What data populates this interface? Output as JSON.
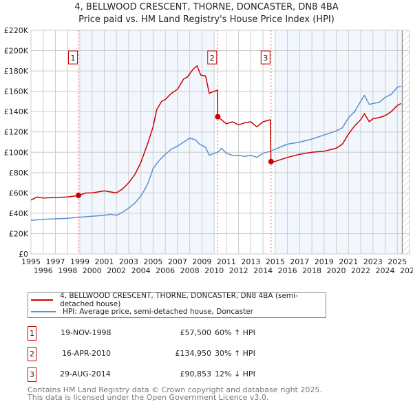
{
  "title": "4, BELLWOOD CRESCENT, THORNE, DONCASTER, DN8 4BA",
  "subtitle": "Price paid vs. HM Land Registry's House Price Index (HPI)",
  "chart_data": {
    "type": "line",
    "xlim": [
      1995,
      2026
    ],
    "ylim": [
      0,
      220000
    ],
    "yticks": [
      0,
      20000,
      40000,
      60000,
      80000,
      100000,
      120000,
      140000,
      160000,
      180000,
      200000,
      220000
    ],
    "ytick_labels": [
      "£0",
      "£20K",
      "£40K",
      "£60K",
      "£80K",
      "£100K",
      "£120K",
      "£140K",
      "£160K",
      "£180K",
      "£200K",
      "£220K"
    ],
    "xticks": [
      1995,
      1996,
      1997,
      1998,
      1999,
      2000,
      2001,
      2002,
      2003,
      2004,
      2005,
      2006,
      2007,
      2008,
      2009,
      2010,
      2011,
      2012,
      2013,
      2014,
      2015,
      2016,
      2017,
      2018,
      2019,
      2020,
      2021,
      2022,
      2023,
      2024,
      2025,
      2026
    ],
    "shaded_ranges": [
      [
        1999,
        2010
      ],
      [
        2015,
        2025.4
      ]
    ],
    "hatched_from": 2025.4,
    "grid": true,
    "series": [
      {
        "name": "4, BELLWOOD CRESCENT, THORNE, DONCASTER, DN8 4BA (semi-detached house)",
        "color": "#cc0000",
        "x": [
          1995,
          1995.5,
          1996,
          1997,
          1998,
          1998.89,
          1999.5,
          2000,
          2001,
          2001.5,
          2002,
          2002.5,
          2003,
          2003.5,
          2004,
          2004.3,
          2004.6,
          2005,
          2005.3,
          2005.7,
          2006,
          2006.5,
          2007,
          2007.5,
          2007.8,
          2008.3,
          2008.6,
          2008.9,
          2009.3,
          2009.6,
          2010,
          2010.28,
          2010.29,
          2011,
          2011.5,
          2012,
          2012.5,
          2013,
          2013.5,
          2014,
          2014.6,
          2014.65,
          2015,
          2016,
          2017,
          2018,
          2019,
          2020,
          2020.5,
          2021,
          2021.5,
          2022,
          2022.3,
          2022.7,
          2023,
          2023.5,
          2024,
          2024.5,
          2025,
          2025.3
        ],
        "y": [
          53000,
          56000,
          55000,
          55500,
          56000,
          57500,
          60000,
          60000,
          62000,
          61000,
          60000,
          64000,
          70000,
          78000,
          90000,
          100000,
          110000,
          125000,
          142000,
          150000,
          152000,
          158000,
          162000,
          172000,
          174000,
          182000,
          185000,
          176000,
          175000,
          158000,
          160000,
          161000,
          134950,
          128000,
          130000,
          127000,
          129000,
          130000,
          125000,
          130000,
          132000,
          90853,
          91000,
          95000,
          98000,
          100000,
          101000,
          104000,
          108000,
          118000,
          126000,
          132000,
          138000,
          130000,
          133000,
          134000,
          136000,
          140000,
          146000,
          148000
        ]
      },
      {
        "name": "HPI: Average price, semi-detached house, Doncaster",
        "color": "#5b8fd0",
        "x": [
          1995,
          1996,
          1997,
          1998,
          1998.89,
          2000,
          2001,
          2001.5,
          2002,
          2002.5,
          2003,
          2003.5,
          2004,
          2004.3,
          2004.6,
          2005,
          2005.5,
          2006,
          2006.5,
          2007,
          2007.5,
          2008,
          2008.5,
          2008.8,
          2009.3,
          2009.6,
          2010,
          2010.3,
          2010.6,
          2011,
          2011.5,
          2012,
          2012.5,
          2013,
          2013.5,
          2014,
          2014.6,
          2015,
          2016,
          2017,
          2018,
          2019,
          2020,
          2020.5,
          2021,
          2021.5,
          2022,
          2022.3,
          2022.7,
          2023,
          2023.5,
          2024,
          2024.5,
          2025,
          2025.3
        ],
        "y": [
          33000,
          34000,
          34500,
          35000,
          36000,
          37000,
          38000,
          39000,
          38000,
          41000,
          45000,
          50000,
          57000,
          63000,
          70000,
          84000,
          92000,
          98000,
          103000,
          106000,
          110000,
          114000,
          112000,
          108000,
          105000,
          97000,
          99000,
          100000,
          104000,
          99000,
          97000,
          97000,
          96000,
          97000,
          95000,
          99000,
          101000,
          103000,
          108000,
          110000,
          113000,
          117000,
          121000,
          124000,
          134000,
          140000,
          150000,
          156000,
          147000,
          148000,
          149000,
          154000,
          157000,
          164000,
          165000
        ]
      }
    ],
    "sales": [
      {
        "id": "1",
        "x": 1998.89,
        "y": 57500
      },
      {
        "id": "2",
        "x": 2010.29,
        "y": 134950
      },
      {
        "id": "3",
        "x": 2014.66,
        "y": 90853
      }
    ]
  },
  "legend": {
    "property": "4, BELLWOOD CRESCENT, THORNE, DONCASTER, DN8 4BA (semi-detached house)",
    "hpi": "HPI: Average price, semi-detached house, Doncaster"
  },
  "transactions": [
    {
      "id": "1",
      "date": "19-NOV-1998",
      "price": "£57,500",
      "hpi": "60% ↑ HPI"
    },
    {
      "id": "2",
      "date": "16-APR-2010",
      "price": "£134,950",
      "hpi": "30% ↑ HPI"
    },
    {
      "id": "3",
      "date": "29-AUG-2014",
      "price": "£90,853",
      "hpi": "12% ↓ HPI"
    }
  ],
  "footer": [
    "Contains HM Land Registry data © Crown copyright and database right 2025.",
    "This data is licensed under the Open Government Licence v3.0."
  ]
}
